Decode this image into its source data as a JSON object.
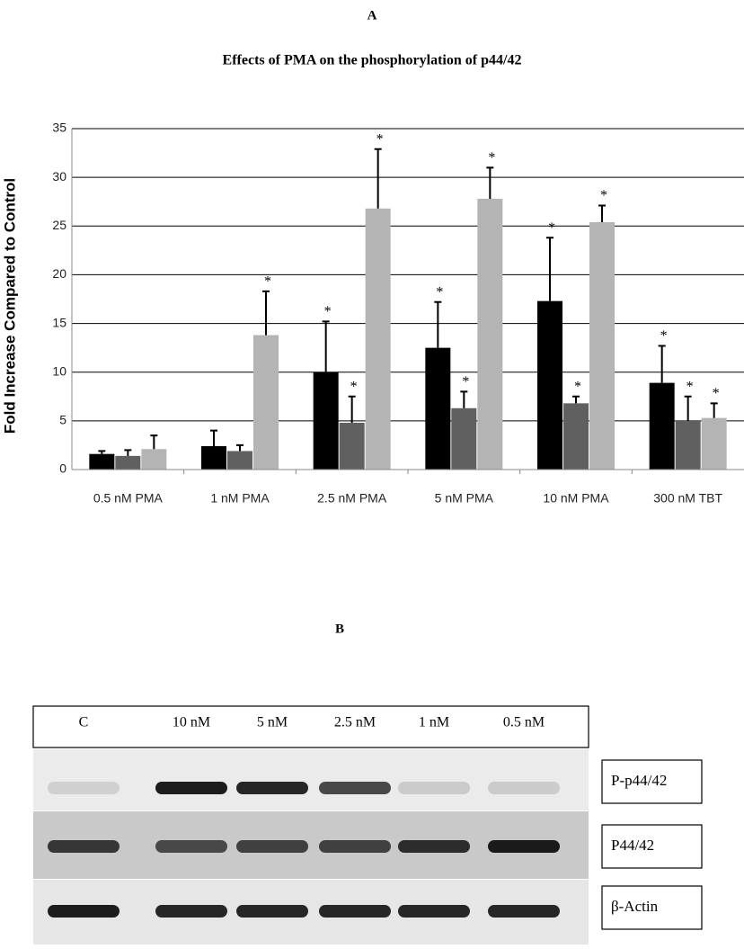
{
  "panel_a": "A",
  "chart_data": {
    "type": "bar",
    "title": "Effects of PMA on the phosphorylation of p44/42",
    "ylabel": "Fold Increase Compared to Control",
    "categories": [
      "0.5 nM PMA",
      "1 nM PMA",
      "2.5 nM PMA",
      "5 nM PMA",
      "10 nM PMA",
      "300 nM TBT"
    ],
    "series": [
      {
        "color": "#000000",
        "values": [
          1.6,
          2.4,
          10.0,
          12.5,
          17.3,
          8.9
        ],
        "errors": [
          0.3,
          1.6,
          5.2,
          4.7,
          6.5,
          3.8
        ],
        "markers": [
          null,
          null,
          "*",
          "*",
          "*",
          "*"
        ]
      },
      {
        "color": "#606060",
        "values": [
          1.4,
          1.9,
          4.8,
          6.3,
          6.8,
          5.0
        ],
        "errors": [
          0.6,
          0.6,
          2.7,
          1.7,
          0.7,
          2.5
        ],
        "markers": [
          null,
          null,
          "*",
          "*",
          "*",
          "*"
        ]
      },
      {
        "color": "#b4b4b4",
        "values": [
          2.1,
          13.8,
          26.8,
          27.8,
          25.4,
          5.3
        ],
        "errors": [
          1.4,
          4.5,
          6.1,
          3.2,
          1.7,
          1.5
        ],
        "markers": [
          null,
          "*",
          "*",
          "*",
          "*",
          "*"
        ]
      }
    ],
    "ylim": [
      0,
      35
    ],
    "yticks": [
      0,
      5,
      10,
      15,
      20,
      25,
      30,
      35
    ],
    "grid": true
  },
  "panel_b": "B",
  "blot": {
    "lanes": [
      "C",
      "10 nM",
      "5 nM",
      "2.5 nM",
      "1 nM",
      "0.5 nM"
    ],
    "rows": [
      "P-p44/42",
      "P44/42",
      "β-Actin"
    ]
  }
}
